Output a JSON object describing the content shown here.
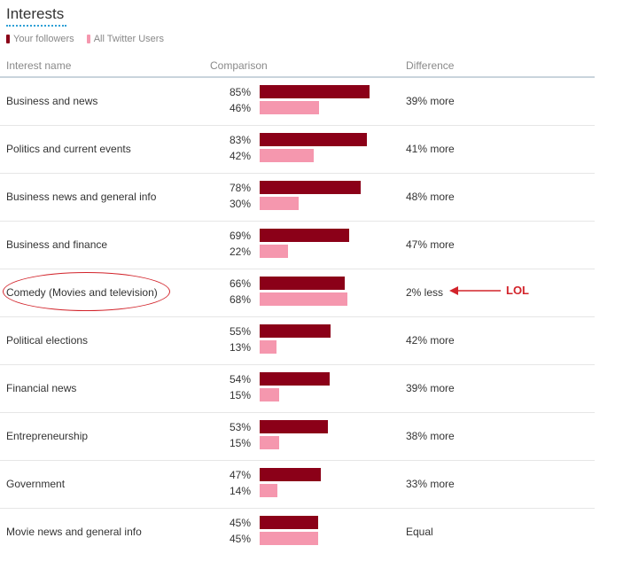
{
  "title": "Interests",
  "legend": [
    {
      "label": "Your followers",
      "color": "#8b0018"
    },
    {
      "label": "All Twitter Users",
      "color": "#f597ae"
    }
  ],
  "header": {
    "interest": "Interest name",
    "comparison": "Comparison",
    "difference": "Difference"
  },
  "annotation": {
    "label": "LOL"
  },
  "chart_data": {
    "type": "bar",
    "title": "Interests",
    "categories": [
      "Business and news",
      "Politics and current events",
      "Business news and general info",
      "Business and finance",
      "Comedy (Movies and television)",
      "Political elections",
      "Financial news",
      "Entrepreneurship",
      "Government",
      "Movie news and general info"
    ],
    "series": [
      {
        "name": "Your followers",
        "color": "#8b0018",
        "values": [
          85,
          83,
          78,
          69,
          66,
          55,
          54,
          53,
          47,
          45
        ]
      },
      {
        "name": "All Twitter Users",
        "color": "#f597ae",
        "values": [
          46,
          42,
          30,
          22,
          68,
          13,
          15,
          15,
          14,
          45
        ]
      }
    ],
    "differences": [
      "39% more",
      "41% more",
      "48% more",
      "47% more",
      "2% less",
      "42% more",
      "39% more",
      "38% more",
      "33% more",
      "Equal"
    ],
    "orientation": "horizontal",
    "xlim": [
      0,
      100
    ],
    "legend_position": "top-left"
  }
}
